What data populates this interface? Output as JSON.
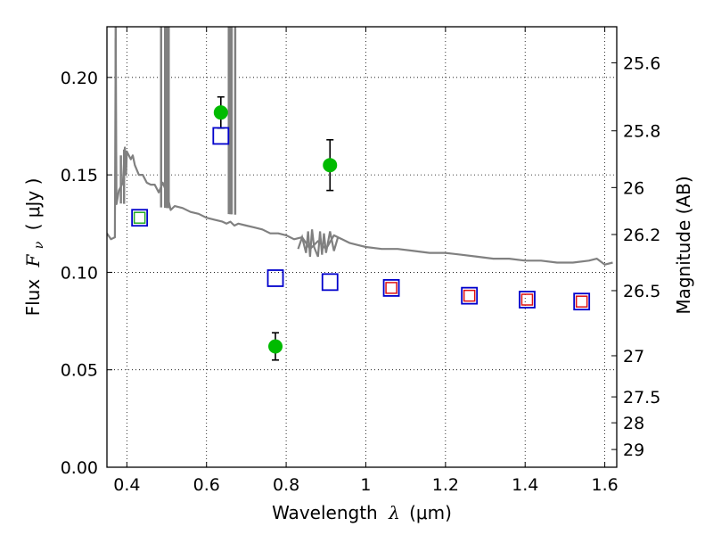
{
  "chart_data": {
    "type": "scatter",
    "xlabel": "Wavelength",
    "xlabel_symbol": "λ",
    "xlabel_unit": "(μm)",
    "ylabel": "Flux",
    "ylabel_symbol": "F",
    "ylabel_symbol_sub": "ν",
    "ylabel_unit": "( μJy )",
    "y2label": "Magnitude (AB)",
    "xlim": [
      0.35,
      1.63
    ],
    "ylim": [
      0.0,
      0.226
    ],
    "grid": true,
    "x_ticks": [
      0.4,
      0.6,
      0.8,
      1.0,
      1.2,
      1.4,
      1.6
    ],
    "x_tick_labels": [
      "0.4",
      "0.6",
      "0.8",
      "1",
      "1.2",
      "1.4",
      "1.6"
    ],
    "y_ticks": [
      0.0,
      0.05,
      0.1,
      0.15,
      0.2
    ],
    "y_tick_labels": [
      "0.00",
      "0.05",
      "0.10",
      "0.15",
      "0.20"
    ],
    "y2_ticks": [
      {
        "label": "25.6",
        "flux": 0.2075
      },
      {
        "label": "25.8",
        "flux": 0.1726
      },
      {
        "label": "26",
        "flux": 0.1435
      },
      {
        "label": "26.2",
        "flux": 0.1194
      },
      {
        "label": "26.5",
        "flux": 0.0906
      },
      {
        "label": "27",
        "flux": 0.0572
      },
      {
        "label": "27.5",
        "flux": 0.0361
      },
      {
        "label": "28",
        "flux": 0.0228
      },
      {
        "label": "29",
        "flux": 0.0091
      }
    ],
    "colors": {
      "sed": "#808080",
      "observed": "#00bb00",
      "model_box": "#0000cc",
      "inner_green": "#22aa22",
      "inner_red": "#dd1111",
      "error_bar": "#000000",
      "grid": "#000000"
    },
    "series": [
      {
        "style": "line",
        "x": [
          0.35,
          0.36,
          0.37,
          0.372,
          0.374,
          0.38,
          0.39,
          0.395,
          0.398,
          0.4,
          0.41,
          0.415,
          0.42,
          0.43,
          0.44,
          0.45,
          0.46,
          0.47,
          0.48,
          0.49,
          0.5,
          0.51,
          0.52,
          0.54,
          0.56,
          0.58,
          0.6,
          0.62,
          0.64,
          0.65,
          0.66,
          0.67,
          0.68,
          0.7,
          0.72,
          0.74,
          0.76,
          0.78,
          0.8,
          0.82,
          0.84,
          0.86,
          0.88,
          0.9,
          0.92,
          0.94,
          0.96,
          0.98,
          1.0,
          1.04,
          1.08,
          1.12,
          1.16,
          1.2,
          1.24,
          1.28,
          1.32,
          1.36,
          1.4,
          1.44,
          1.48,
          1.52,
          1.56,
          1.58,
          1.6,
          1.62
        ],
        "y": [
          0.12,
          0.117,
          0.118,
          0.22,
          0.135,
          0.142,
          0.146,
          0.164,
          0.15,
          0.162,
          0.158,
          0.16,
          0.155,
          0.15,
          0.15,
          0.146,
          0.145,
          0.145,
          0.141,
          0.146,
          0.141,
          0.132,
          0.134,
          0.133,
          0.131,
          0.13,
          0.128,
          0.127,
          0.126,
          0.125,
          0.126,
          0.124,
          0.125,
          0.124,
          0.123,
          0.122,
          0.12,
          0.12,
          0.119,
          0.117,
          0.118,
          0.112,
          0.116,
          0.112,
          0.119,
          0.117,
          0.115,
          0.114,
          0.113,
          0.112,
          0.112,
          0.111,
          0.11,
          0.11,
          0.109,
          0.108,
          0.107,
          0.107,
          0.106,
          0.106,
          0.105,
          0.105,
          0.106,
          0.107,
          0.104,
          0.105
        ]
      },
      {
        "style": "emission_spikes",
        "x": [
          0.372,
          0.385,
          0.393,
          0.486,
          0.496,
          0.501,
          0.505,
          0.656,
          0.66,
          0.663,
          0.672
        ],
        "y": [
          0.226,
          0.16,
          0.163,
          0.226,
          0.226,
          0.226,
          0.226,
          0.226,
          0.226,
          0.226,
          0.226
        ]
      },
      {
        "style": "absorption_features",
        "x": [
          0.83,
          0.84,
          0.85,
          0.855,
          0.86,
          0.865,
          0.87,
          0.88,
          0.885,
          0.89,
          0.895,
          0.9,
          0.91,
          0.92,
          0.93
        ],
        "y": [
          0.112,
          0.118,
          0.11,
          0.121,
          0.108,
          0.122,
          0.113,
          0.108,
          0.121,
          0.109,
          0.12,
          0.11,
          0.121,
          0.111,
          0.118
        ]
      },
      {
        "style": "observed",
        "x": [
          0.636,
          0.773,
          0.91
        ],
        "y": [
          0.182,
          0.062,
          0.155
        ],
        "err": [
          0.008,
          0.007,
          0.013
        ]
      },
      {
        "style": "model",
        "x": [
          0.432,
          0.636,
          0.773,
          0.91,
          1.064,
          1.26,
          1.405,
          1.542
        ],
        "y": [
          0.128,
          0.17,
          0.097,
          0.095,
          0.092,
          0.088,
          0.086,
          0.085
        ],
        "inner": [
          "green",
          "none",
          "none",
          "none",
          "red",
          "red",
          "red",
          "red"
        ]
      }
    ]
  }
}
